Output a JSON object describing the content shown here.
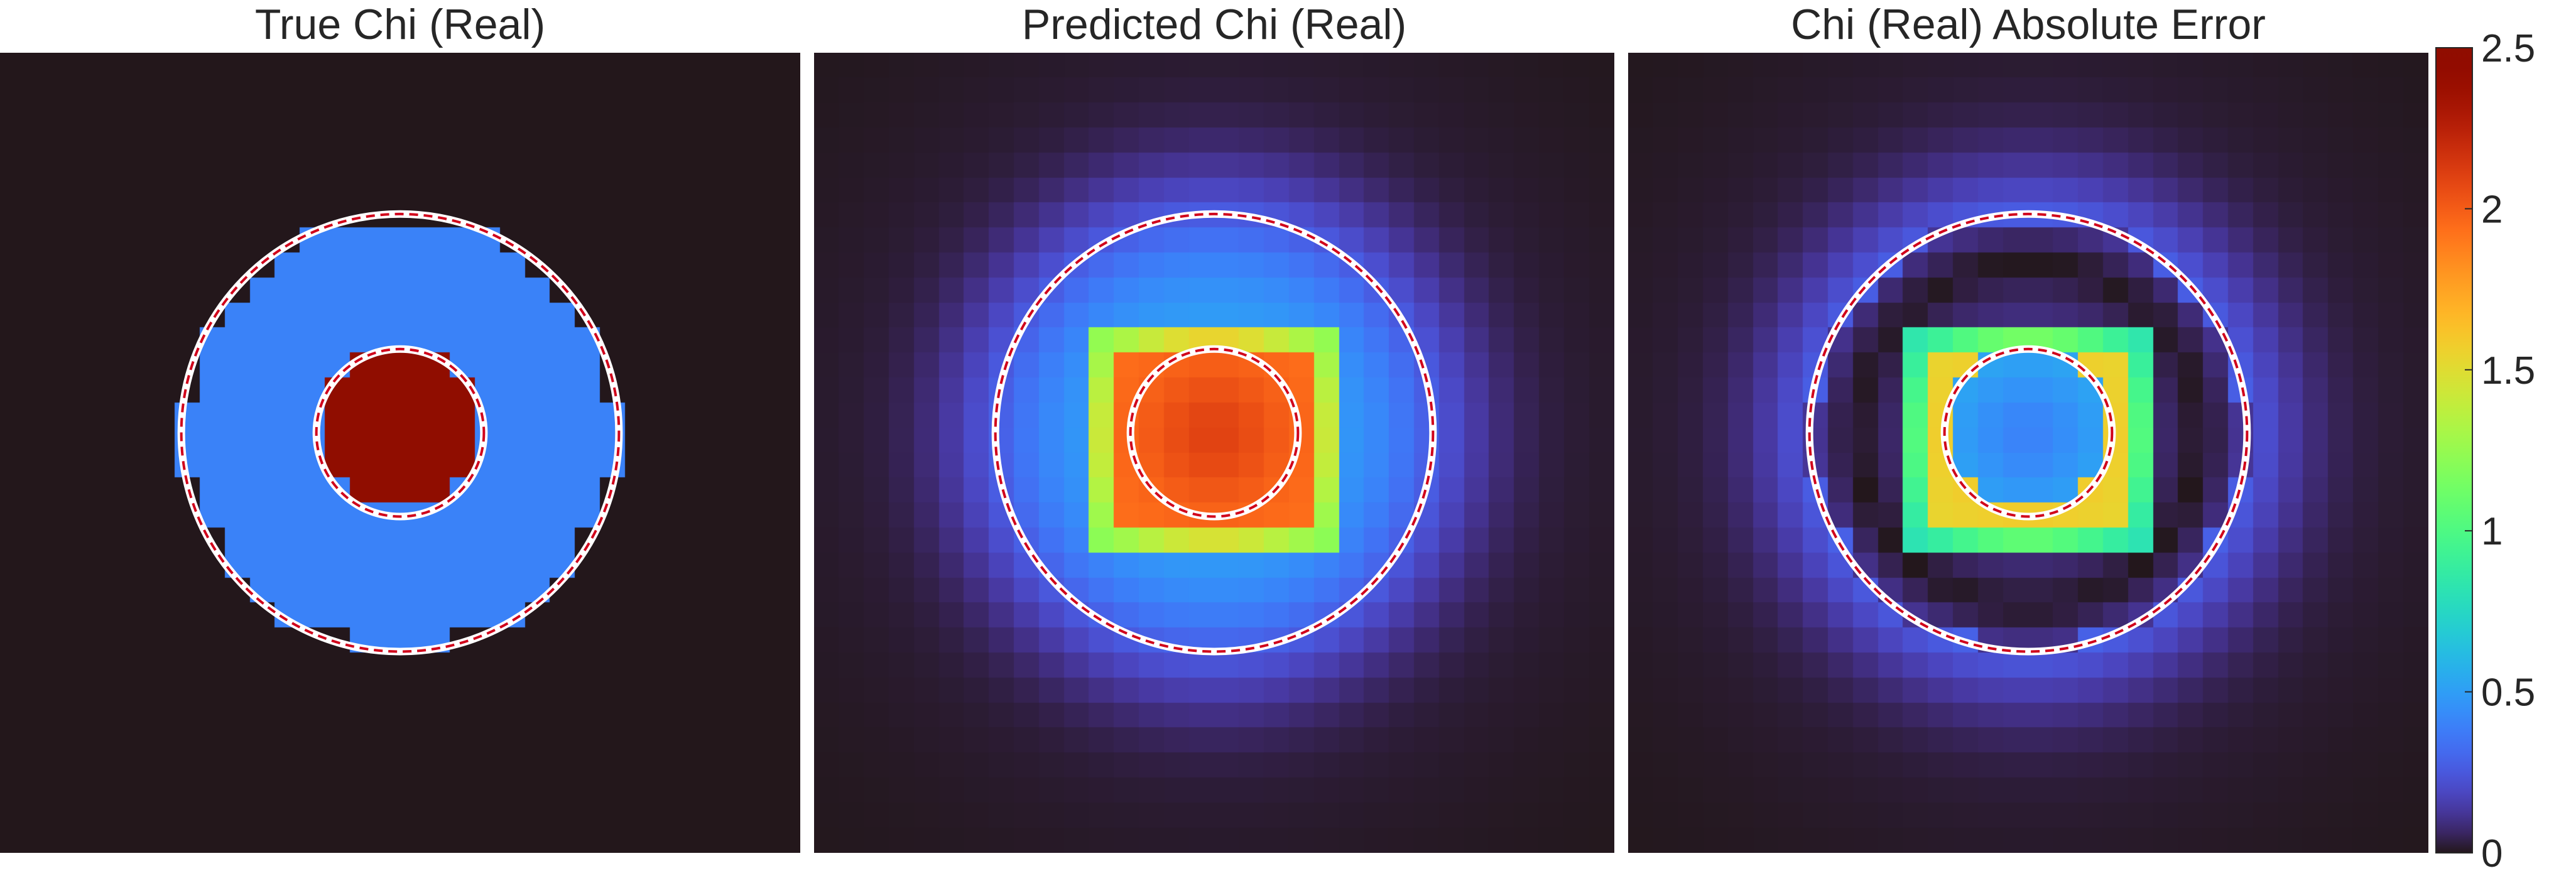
{
  "chart_data": [
    {
      "type": "heatmap",
      "title": "True Chi (Real)",
      "grid_size": 32,
      "field": "true",
      "circles": [
        {
          "role": "outer"
        },
        {
          "role": "inner"
        }
      ]
    },
    {
      "type": "heatmap",
      "title": "Predicted Chi (Real)",
      "grid_size": 32,
      "field": "predicted",
      "circles": [
        {
          "role": "outer"
        },
        {
          "role": "inner"
        }
      ]
    },
    {
      "type": "heatmap",
      "title": "Chi (Real) Absolute Error",
      "grid_size": 32,
      "field": "error",
      "circles": [
        {
          "role": "outer"
        },
        {
          "role": "inner"
        }
      ]
    }
  ],
  "colorbar": {
    "colormap": "turbo",
    "range": [
      0,
      2.5
    ],
    "ticks": [
      0,
      0.5,
      1,
      1.5,
      2,
      2.5
    ],
    "tick_labels": [
      "0",
      "0.5",
      "1",
      "1.5",
      "2",
      "2.5"
    ]
  },
  "values": {
    "background": 0.0,
    "outer_region": 0.4,
    "inner_region": 2.5,
    "predicted_inner_peak": 2.1
  },
  "colors": {
    "circle_outer_stroke": "#ffffff",
    "circle_dash": "#d0021b"
  }
}
